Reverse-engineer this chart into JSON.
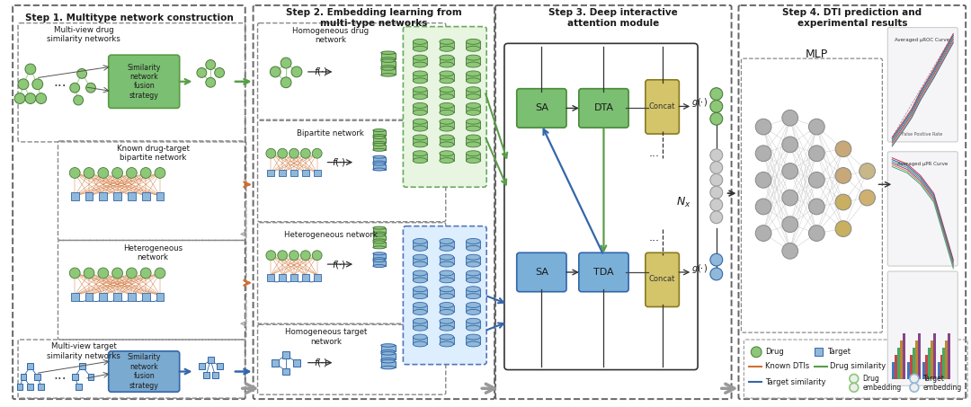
{
  "step1_title": "Step 1. Multitype network construction",
  "step2_title": "Step 2. Embedding learning from\nmulti-type networks",
  "step3_title": "Step 3. Deep interactive\nattention module",
  "step4_title": "Step 4. DTI prediction and\nexperimental results",
  "drug_color": "#8dc878",
  "target_color": "#90b8d8",
  "sa_dta_color": "#7bbf72",
  "sa_tda_color": "#6699cc",
  "concat_color": "#d4c56a",
  "known_dti_color": "#d07030",
  "drug_sim_color": "#5a9e48",
  "target_sim_color": "#3366aa",
  "bg_color": "#ffffff",
  "fusion_drug_fc": "#7bbf72",
  "fusion_drug_ec": "#5a9a40",
  "fusion_tgt_fc": "#7aaad0",
  "fusion_tgt_ec": "#3366aa"
}
